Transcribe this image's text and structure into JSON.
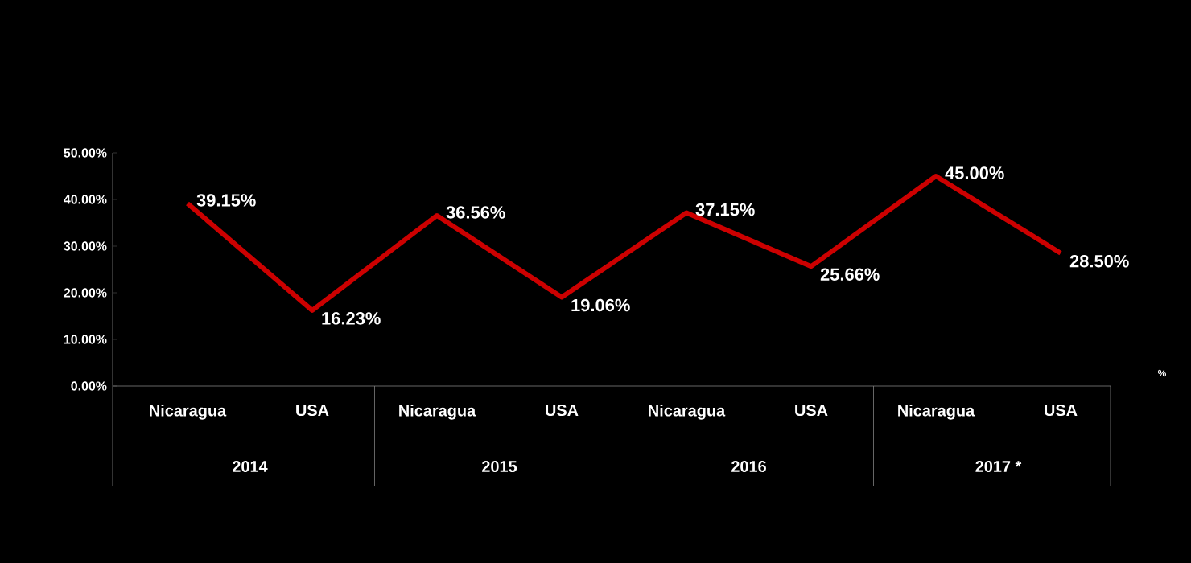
{
  "chart_data": {
    "type": "line",
    "categories": [
      "Nicaragua",
      "USA",
      "Nicaragua",
      "USA",
      "Nicaragua",
      "USA",
      "Nicaragua",
      "USA"
    ],
    "series": [
      {
        "name": "%",
        "color": "#cc0000",
        "values": [
          39.15,
          16.23,
          36.56,
          19.06,
          37.15,
          25.66,
          45.0,
          28.5
        ],
        "value_labels": [
          "39.15%",
          "16.23%",
          "36.56%",
          "19.06%",
          "37.15%",
          "25.66%",
          "45.00%",
          "28.50%"
        ]
      }
    ],
    "ylim": [
      0,
      50
    ],
    "yticks": [
      {
        "value": 0,
        "label": "0.00%"
      },
      {
        "value": 10,
        "label": "10.00%"
      },
      {
        "value": 20,
        "label": "20.00%"
      },
      {
        "value": 30,
        "label": "30.00%"
      },
      {
        "value": 40,
        "label": "40.00%"
      },
      {
        "value": 50,
        "label": "50.00%"
      }
    ],
    "annotations": [
      "2014",
      "2015",
      "2016",
      "2017 *"
    ],
    "grid": false,
    "marker": "none",
    "line_style": "solid"
  }
}
